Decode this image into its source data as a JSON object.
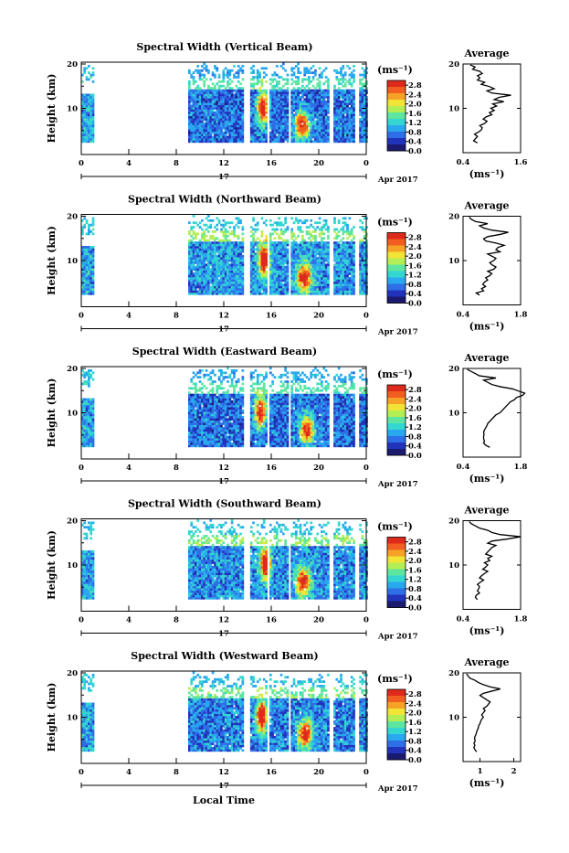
{
  "chart_data": {
    "type": "heatmap",
    "shared": {
      "ylabel": "Height (km)",
      "y_ticks": [
        "20",
        "10"
      ],
      "y_range_km": [
        0,
        20
      ],
      "x_ticks": [
        "0",
        "4",
        "8",
        "12",
        "16",
        "20",
        "0"
      ],
      "x_range_hours": [
        0,
        24
      ],
      "date_day": "17",
      "date_month_year": "Apr 2017",
      "xlabel": "Local Time",
      "colorbar_unit": "(ms⁻¹)",
      "colorbar_ticks": [
        "2.8",
        "2.4",
        "2.0",
        "1.6",
        "1.2",
        "0.8",
        "0.4",
        "0.0"
      ],
      "colorbar_range": [
        0.0,
        3.0
      ],
      "colors": [
        "#1a1a6e",
        "#2233bb",
        "#2e6ee6",
        "#29a8ef",
        "#33d6d0",
        "#5ee6a0",
        "#b4ee55",
        "#f2e436",
        "#f5a226",
        "#f25e1f",
        "#de2a1d"
      ],
      "profile_title": "Average",
      "profile_unit": "(ms⁻¹)",
      "data_gaps_hours": [
        [
          1,
          9
        ],
        [
          13.7,
          14.2
        ],
        [
          15.6,
          15.9
        ],
        [
          17.4,
          17.7
        ],
        [
          20.9,
          21.3
        ],
        [
          23.1,
          23.4
        ]
      ],
      "top_of_data_km": {
        "left_segment": 19.5,
        "main_segment": 20
      }
    },
    "panels": [
      {
        "title": "Spectral Width (Vertical Beam)",
        "profile_x_ticks": [
          "0.4",
          "1.6"
        ],
        "profile_x_range": [
          0.4,
          1.6
        ],
        "profile_values": [
          0.7,
          0.62,
          0.66,
          0.7,
          0.64,
          0.72,
          0.78,
          0.8,
          0.75,
          0.85,
          0.9,
          0.82,
          0.88,
          1.0,
          0.95,
          1.05,
          0.98,
          1.1,
          1.02,
          1.25,
          1.05,
          1.15,
          1.4,
          1.0,
          0.9,
          1.05,
          0.95,
          0.78,
          0.85,
          0.7,
          0.75,
          0.7,
          0.8,
          0.75,
          0.6,
          0.65,
          0.55
        ],
        "high_width_hours": [
          15.2,
          18.5
        ],
        "base_level": 0.7
      },
      {
        "title": "Spectral Width (Northward Beam)",
        "profile_x_ticks": [
          "0.4",
          "1.8"
        ],
        "profile_x_range": [
          0.4,
          1.8
        ],
        "profile_values": [
          0.8,
          0.72,
          0.9,
          0.85,
          0.95,
          0.88,
          0.92,
          1.0,
          0.95,
          1.05,
          1.1,
          1.0,
          1.15,
          1.2,
          1.1,
          1.05,
          1.15,
          1.2,
          1.1,
          1.0,
          1.3,
          1.2,
          1.25,
          1.4,
          1.2,
          0.95,
          0.9,
          1.0,
          1.3,
          1.5,
          1.1,
          0.9,
          0.8,
          1.0,
          0.7,
          0.6,
          0.55
        ],
        "high_width_hours": [
          15.3,
          18.7
        ],
        "base_level": 0.9
      },
      {
        "title": "Spectral Width (Eastward Beam)",
        "profile_x_ticks": [
          "0.4",
          "1.8"
        ],
        "profile_x_range": [
          0.4,
          1.8
        ],
        "profile_values": [
          1.05,
          0.95,
          0.9,
          0.92,
          0.9,
          0.9,
          0.91,
          0.9,
          0.92,
          0.95,
          0.98,
          1.0,
          1.05,
          1.1,
          1.15,
          1.2,
          1.3,
          1.35,
          1.4,
          1.45,
          1.5,
          1.55,
          1.65,
          1.7,
          1.85,
          1.9,
          1.75,
          1.6,
          1.3,
          1.1,
          1.0,
          0.9,
          1.2,
          0.8,
          0.7,
          0.6,
          0.5
        ],
        "high_width_hours": [
          15.0,
          18.9
        ],
        "base_level": 0.7
      },
      {
        "title": "Spectral Width (Southward Beam)",
        "profile_x_ticks": [
          "0.4",
          "1.8"
        ],
        "profile_x_range": [
          0.4,
          1.8
        ],
        "profile_values": [
          0.75,
          0.7,
          0.72,
          0.8,
          0.75,
          0.78,
          0.8,
          0.75,
          0.82,
          0.9,
          0.8,
          0.85,
          0.92,
          1.0,
          0.88,
          0.95,
          1.0,
          0.92,
          1.05,
          1.0,
          1.1,
          0.95,
          1.0,
          1.05,
          1.1,
          1.2,
          1.0,
          1.1,
          1.5,
          1.8,
          1.3,
          1.1,
          1.0,
          0.8,
          0.7,
          0.6,
          0.55
        ],
        "high_width_hours": [
          15.4,
          18.6
        ],
        "base_level": 0.85
      },
      {
        "title": "Spectral Width (Westward Beam)",
        "profile_x_ticks": [
          "1",
          "2"
        ],
        "profile_x_range": [
          0.5,
          2.2
        ],
        "profile_values": [
          0.9,
          0.85,
          0.82,
          0.85,
          0.82,
          0.86,
          0.84,
          0.85,
          0.88,
          0.9,
          0.92,
          0.95,
          0.96,
          1.0,
          1.02,
          1.05,
          1.1,
          1.05,
          1.1,
          1.15,
          1.1,
          1.2,
          1.25,
          1.3,
          1.2,
          1.1,
          1.0,
          1.1,
          1.35,
          1.6,
          1.3,
          1.1,
          0.95,
          0.85,
          0.7,
          0.65,
          0.6
        ],
        "high_width_hours": [
          15.1,
          18.8
        ],
        "base_level": 0.8
      }
    ]
  }
}
